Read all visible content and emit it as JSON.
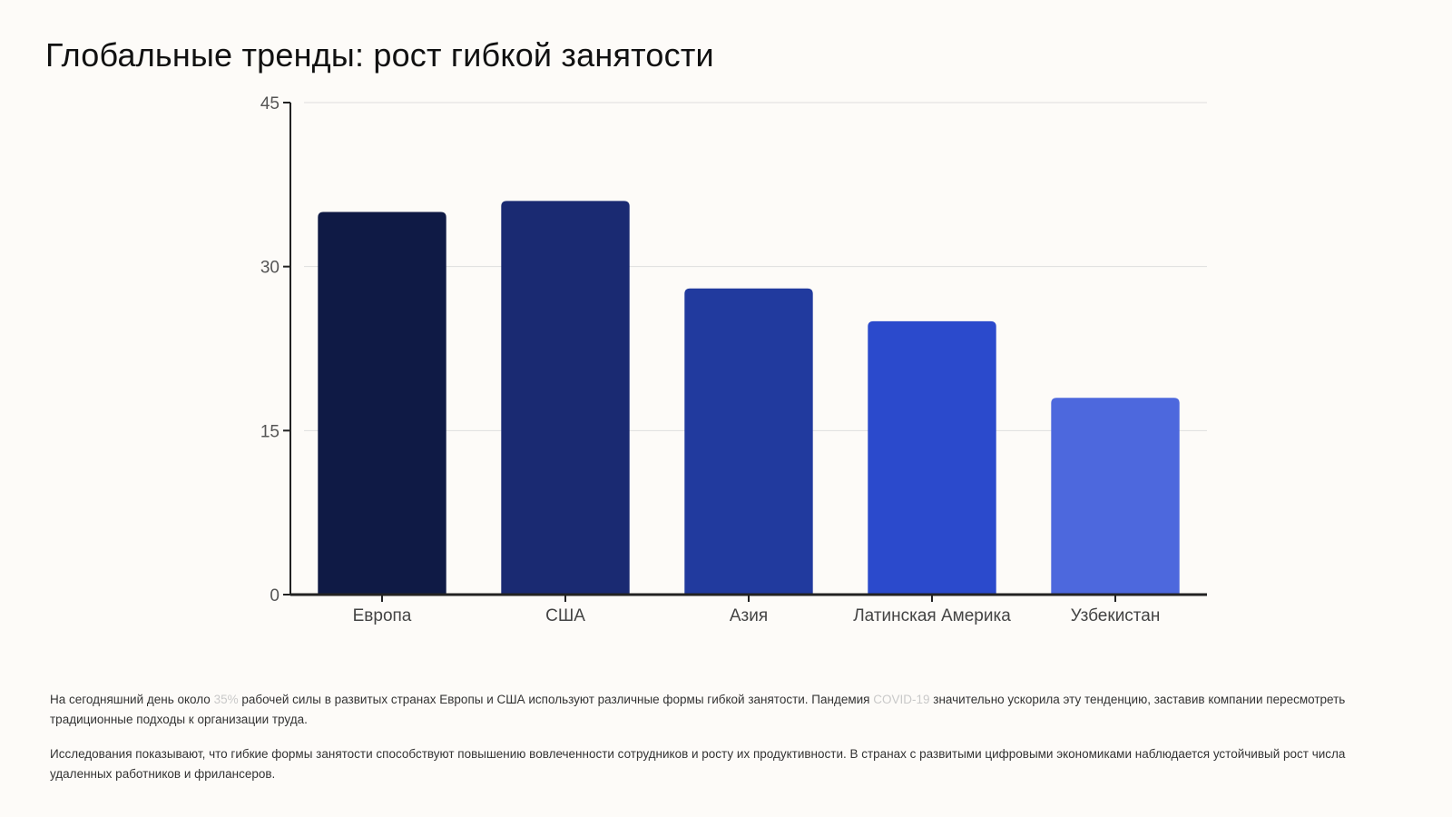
{
  "page": {
    "title": "Глобальные тренды: рост гибкой занятости"
  },
  "chart_data": {
    "type": "bar",
    "title": "",
    "xlabel": "",
    "ylabel": "",
    "categories": [
      "Европа",
      "США",
      "Азия",
      "Латинская Америка",
      "Узбекистан"
    ],
    "values": [
      35,
      36,
      28,
      25,
      18
    ],
    "colors": [
      "#0f1a45",
      "#1a2a72",
      "#213a9e",
      "#2b4acc",
      "#4d68dd"
    ],
    "ylim": [
      0,
      45
    ],
    "yticks": [
      "0",
      "15",
      "30",
      "45"
    ],
    "grid": true,
    "legend": "none"
  },
  "text": {
    "p1": {
      "a": "На сегодняшний день около ",
      "b": "35%",
      "c": " рабочей силы в развитых странах Европы и США используют различные формы гибкой занятости. Пандемия ",
      "d": "COVID-19",
      "e": " значительно ускорила эту тенденцию, заставив компании пересмотреть традиционные подходы к организации труда."
    },
    "p2": "Исследования показывают, что гибкие формы занятости способствуют повышению вовлеченности сотрудников и росту их продуктивности. В странах с развитыми цифровыми экономиками наблюдается устойчивый рост числа удаленных работников и фрилансеров."
  }
}
